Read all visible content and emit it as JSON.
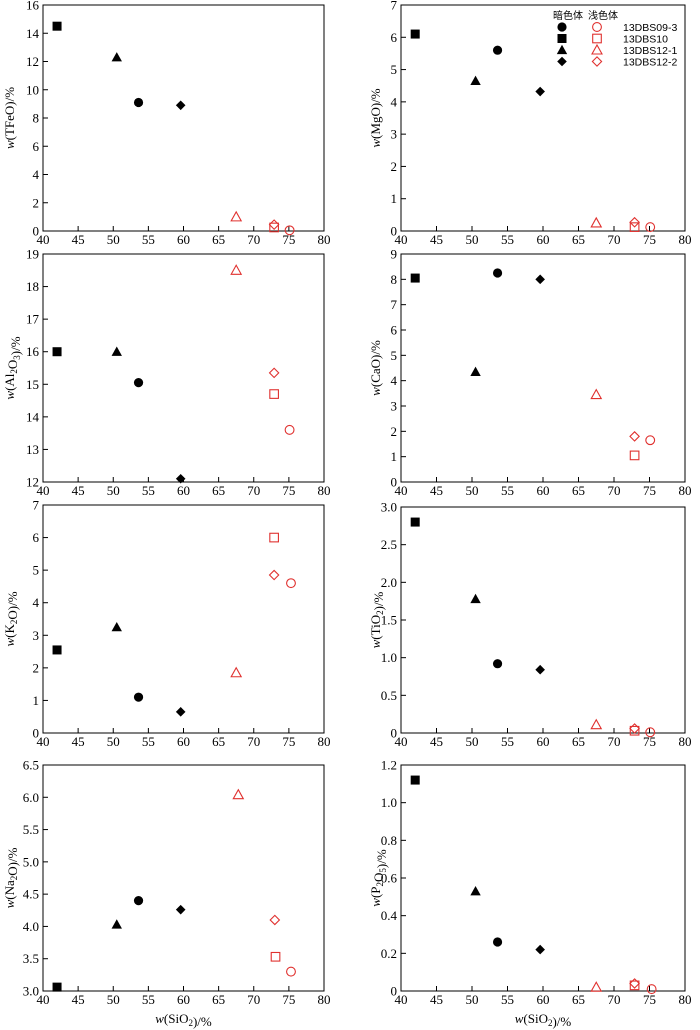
{
  "legend": {
    "header_dark": "暗色体",
    "header_light": "浅色体",
    "entries": [
      {
        "name": "13DBS09-3",
        "symbol": "circle"
      },
      {
        "name": "13DBS10",
        "symbol": "square"
      },
      {
        "name": "13DBS12-1",
        "symbol": "triangle"
      },
      {
        "name": "13DBS12-2",
        "symbol": "diamond"
      }
    ]
  },
  "colors": {
    "dark": "#000000",
    "light": "#e0312f"
  },
  "chart_data": [
    {
      "type": "scatter",
      "panel": "tfeo",
      "ylabel_parts": [
        "w(TFeO)/%"
      ],
      "xlabel_parts": [],
      "xlim": [
        40,
        80
      ],
      "xticks": [
        "40",
        "45",
        "50",
        "55",
        "60",
        "65",
        "70",
        "75",
        "80"
      ],
      "ylim": [
        0,
        16
      ],
      "yticks": [
        "0",
        "2",
        "4",
        "6",
        "8",
        "10",
        "12",
        "14",
        "16"
      ],
      "series": [
        {
          "name": "13DBS09-3 暗色体",
          "symbol": "circle",
          "filled": true,
          "x": 53.6,
          "y": 9.1
        },
        {
          "name": "13DBS10 暗色体",
          "symbol": "square",
          "filled": true,
          "x": 42.0,
          "y": 14.5
        },
        {
          "name": "13DBS12-1 暗色体",
          "symbol": "triangle",
          "filled": true,
          "x": 50.5,
          "y": 12.3
        },
        {
          "name": "13DBS12-2 暗色体",
          "symbol": "diamond",
          "filled": true,
          "x": 59.6,
          "y": 8.9
        },
        {
          "name": "13DBS09-3 浅色体",
          "symbol": "circle",
          "filled": false,
          "x": 75.1,
          "y": 0.05
        },
        {
          "name": "13DBS10 浅色体",
          "symbol": "square",
          "filled": false,
          "x": 72.9,
          "y": 0.25
        },
        {
          "name": "13DBS12-1 浅色体",
          "symbol": "triangle",
          "filled": false,
          "x": 67.5,
          "y": 1.0
        },
        {
          "name": "13DBS12-2 浅色体",
          "symbol": "diamond",
          "filled": false,
          "x": 72.9,
          "y": 0.45
        }
      ]
    },
    {
      "type": "scatter",
      "panel": "mgo",
      "ylabel_parts": [
        "w(MgO)/%"
      ],
      "xlabel_parts": [],
      "xlim": [
        40,
        80
      ],
      "xticks": [
        "40",
        "45",
        "50",
        "55",
        "60",
        "65",
        "70",
        "75",
        "80"
      ],
      "ylim": [
        0,
        7
      ],
      "yticks": [
        "0",
        "1",
        "2",
        "3",
        "4",
        "5",
        "6",
        "7"
      ],
      "series": [
        {
          "name": "13DBS09-3 暗色体",
          "symbol": "circle",
          "filled": true,
          "x": 53.6,
          "y": 5.6
        },
        {
          "name": "13DBS10 暗色体",
          "symbol": "square",
          "filled": true,
          "x": 42.0,
          "y": 6.1
        },
        {
          "name": "13DBS12-1 暗色体",
          "symbol": "triangle",
          "filled": true,
          "x": 50.5,
          "y": 4.65
        },
        {
          "name": "13DBS12-2 暗色体",
          "symbol": "diamond",
          "filled": true,
          "x": 59.6,
          "y": 4.32
        },
        {
          "name": "13DBS09-3 浅色体",
          "symbol": "circle",
          "filled": false,
          "x": 75.1,
          "y": 0.12
        },
        {
          "name": "13DBS10 浅色体",
          "symbol": "square",
          "filled": false,
          "x": 72.9,
          "y": 0.12
        },
        {
          "name": "13DBS12-1 浅色体",
          "symbol": "triangle",
          "filled": false,
          "x": 67.5,
          "y": 0.25
        },
        {
          "name": "13DBS12-2 浅色体",
          "symbol": "diamond",
          "filled": false,
          "x": 72.9,
          "y": 0.27
        }
      ]
    },
    {
      "type": "scatter",
      "panel": "al2o3",
      "ylabel_parts": [
        "w(Al",
        "2",
        "O",
        "3",
        ")/%"
      ],
      "xlabel_parts": [],
      "xlim": [
        40,
        80
      ],
      "xticks": [
        "40",
        "45",
        "50",
        "55",
        "60",
        "65",
        "70",
        "75",
        "80"
      ],
      "ylim": [
        12,
        19
      ],
      "yticks": [
        "12",
        "13",
        "14",
        "15",
        "16",
        "17",
        "18",
        "19"
      ],
      "series": [
        {
          "name": "13DBS09-3 暗色体",
          "symbol": "circle",
          "filled": true,
          "x": 53.6,
          "y": 15.05
        },
        {
          "name": "13DBS10 暗色体",
          "symbol": "square",
          "filled": true,
          "x": 42.0,
          "y": 16.0
        },
        {
          "name": "13DBS12-1 暗色体",
          "symbol": "triangle",
          "filled": true,
          "x": 50.5,
          "y": 16.0
        },
        {
          "name": "13DBS12-2 暗色体",
          "symbol": "diamond",
          "filled": true,
          "x": 59.6,
          "y": 12.1
        },
        {
          "name": "13DBS09-3 浅色体",
          "symbol": "circle",
          "filled": false,
          "x": 75.1,
          "y": 13.6
        },
        {
          "name": "13DBS10 浅色体",
          "symbol": "square",
          "filled": false,
          "x": 72.9,
          "y": 14.7
        },
        {
          "name": "13DBS12-1 浅色体",
          "symbol": "triangle",
          "filled": false,
          "x": 67.5,
          "y": 18.5
        },
        {
          "name": "13DBS12-2 浅色体",
          "symbol": "diamond",
          "filled": false,
          "x": 72.9,
          "y": 15.35
        }
      ]
    },
    {
      "type": "scatter",
      "panel": "cao",
      "ylabel_parts": [
        "w(CaO)/%"
      ],
      "xlabel_parts": [],
      "xlim": [
        40,
        80
      ],
      "xticks": [
        "40",
        "45",
        "50",
        "55",
        "60",
        "65",
        "70",
        "75",
        "80"
      ],
      "ylim": [
        0,
        9
      ],
      "yticks": [
        "0",
        "1",
        "2",
        "3",
        "4",
        "5",
        "6",
        "7",
        "8",
        "9"
      ],
      "series": [
        {
          "name": "13DBS09-3 暗色体",
          "symbol": "circle",
          "filled": true,
          "x": 53.6,
          "y": 8.25
        },
        {
          "name": "13DBS10 暗色体",
          "symbol": "square",
          "filled": true,
          "x": 42.0,
          "y": 8.05
        },
        {
          "name": "13DBS12-1 暗色体",
          "symbol": "triangle",
          "filled": true,
          "x": 50.5,
          "y": 4.35
        },
        {
          "name": "13DBS12-2 暗色体",
          "symbol": "diamond",
          "filled": true,
          "x": 59.6,
          "y": 8.0
        },
        {
          "name": "13DBS09-3 浅色体",
          "symbol": "circle",
          "filled": false,
          "x": 75.1,
          "y": 1.65
        },
        {
          "name": "13DBS10 浅色体",
          "symbol": "square",
          "filled": false,
          "x": 72.9,
          "y": 1.05
        },
        {
          "name": "13DBS12-1 浅色体",
          "symbol": "triangle",
          "filled": false,
          "x": 67.5,
          "y": 3.45
        },
        {
          "name": "13DBS12-2 浅色体",
          "symbol": "diamond",
          "filled": false,
          "x": 72.9,
          "y": 1.8
        }
      ]
    },
    {
      "type": "scatter",
      "panel": "k2o",
      "ylabel_parts": [
        "w(K",
        "2",
        "O)/%"
      ],
      "xlabel_parts": [],
      "xlim": [
        40,
        80
      ],
      "xticks": [
        "40",
        "45",
        "50",
        "55",
        "60",
        "65",
        "70",
        "75",
        "80"
      ],
      "ylim": [
        0,
        7
      ],
      "yticks": [
        "0",
        "1",
        "2",
        "3",
        "4",
        "5",
        "6",
        "7"
      ],
      "series": [
        {
          "name": "13DBS09-3 暗色体",
          "symbol": "circle",
          "filled": true,
          "x": 53.6,
          "y": 1.1
        },
        {
          "name": "13DBS10 暗色体",
          "symbol": "square",
          "filled": true,
          "x": 42.0,
          "y": 2.55
        },
        {
          "name": "13DBS12-1 暗色体",
          "symbol": "triangle",
          "filled": true,
          "x": 50.5,
          "y": 3.25
        },
        {
          "name": "13DBS12-2 暗色体",
          "symbol": "diamond",
          "filled": true,
          "x": 59.6,
          "y": 0.65
        },
        {
          "name": "13DBS09-3 浅色体",
          "symbol": "circle",
          "filled": false,
          "x": 75.3,
          "y": 4.6
        },
        {
          "name": "13DBS10 浅色体",
          "symbol": "square",
          "filled": false,
          "x": 72.9,
          "y": 6.0
        },
        {
          "name": "13DBS12-1 浅色体",
          "symbol": "triangle",
          "filled": false,
          "x": 67.5,
          "y": 1.85
        },
        {
          "name": "13DBS12-2 浅色体",
          "symbol": "diamond",
          "filled": false,
          "x": 72.9,
          "y": 4.85
        }
      ]
    },
    {
      "type": "scatter",
      "panel": "tio2",
      "ylabel_parts": [
        "w(TiO",
        "2",
        ")/%"
      ],
      "xlabel_parts": [],
      "xlim": [
        40,
        80
      ],
      "xticks": [
        "40",
        "45",
        "50",
        "55",
        "60",
        "65",
        "70",
        "75",
        "80"
      ],
      "ylim": [
        0,
        3.0
      ],
      "yticks": [
        "0",
        "0.5",
        "1.0",
        "1.5",
        "2.0",
        "2.5",
        "3.0"
      ],
      "series": [
        {
          "name": "13DBS09-3 暗色体",
          "symbol": "circle",
          "filled": true,
          "x": 53.6,
          "y": 0.92
        },
        {
          "name": "13DBS10 暗色体",
          "symbol": "square",
          "filled": true,
          "x": 42.0,
          "y": 2.8
        },
        {
          "name": "13DBS12-1 暗色体",
          "symbol": "triangle",
          "filled": true,
          "x": 50.5,
          "y": 1.78
        },
        {
          "name": "13DBS12-2 暗色体",
          "symbol": "diamond",
          "filled": true,
          "x": 59.6,
          "y": 0.84
        },
        {
          "name": "13DBS09-3 浅色体",
          "symbol": "circle",
          "filled": false,
          "x": 75.1,
          "y": 0.01
        },
        {
          "name": "13DBS10 浅色体",
          "symbol": "square",
          "filled": false,
          "x": 72.9,
          "y": 0.03
        },
        {
          "name": "13DBS12-1 浅色体",
          "symbol": "triangle",
          "filled": false,
          "x": 67.5,
          "y": 0.11
        },
        {
          "name": "13DBS12-2 浅色体",
          "symbol": "diamond",
          "filled": false,
          "x": 72.9,
          "y": 0.06
        }
      ]
    },
    {
      "type": "scatter",
      "panel": "na2o",
      "ylabel_parts": [
        "w(Na",
        "2",
        "O)/%"
      ],
      "xlabel_parts": [
        "w(SiO",
        "2",
        ")/%"
      ],
      "xlim": [
        40,
        80
      ],
      "xticks": [
        "40",
        "45",
        "50",
        "55",
        "60",
        "65",
        "70",
        "75",
        "80"
      ],
      "ylim": [
        3.0,
        6.5
      ],
      "yticks": [
        "3.0",
        "3.5",
        "4.0",
        "4.5",
        "5.0",
        "5.5",
        "6.0",
        "6.5"
      ],
      "series": [
        {
          "name": "13DBS09-3 暗色体",
          "symbol": "circle",
          "filled": true,
          "x": 53.6,
          "y": 4.4
        },
        {
          "name": "13DBS10 暗色体",
          "symbol": "square",
          "filled": true,
          "x": 42.0,
          "y": 3.06
        },
        {
          "name": "13DBS12-1 暗色体",
          "symbol": "triangle",
          "filled": true,
          "x": 50.5,
          "y": 4.03
        },
        {
          "name": "13DBS12-2 暗色体",
          "symbol": "diamond",
          "filled": true,
          "x": 59.6,
          "y": 4.26
        },
        {
          "name": "13DBS09-3 浅色体",
          "symbol": "circle",
          "filled": false,
          "x": 75.3,
          "y": 3.3
        },
        {
          "name": "13DBS10 浅色体",
          "symbol": "square",
          "filled": false,
          "x": 73.1,
          "y": 3.53
        },
        {
          "name": "13DBS12-1 浅色体",
          "symbol": "triangle",
          "filled": false,
          "x": 67.8,
          "y": 6.04
        },
        {
          "name": "13DBS12-2 浅色体",
          "symbol": "diamond",
          "filled": false,
          "x": 73.0,
          "y": 4.1
        }
      ]
    },
    {
      "type": "scatter",
      "panel": "p2o5",
      "ylabel_parts": [
        "w(P",
        "2",
        "O",
        "5",
        ")/%"
      ],
      "xlabel_parts": [
        "w(SiO",
        "2",
        ")/%"
      ],
      "xlim": [
        40,
        80
      ],
      "xticks": [
        "40",
        "45",
        "50",
        "55",
        "60",
        "65",
        "70",
        "75",
        "80"
      ],
      "ylim": [
        0,
        1.2
      ],
      "yticks": [
        "0",
        "0.2",
        "0.4",
        "0.6",
        "0.8",
        "1.0",
        "1.2"
      ],
      "series": [
        {
          "name": "13DBS09-3 暗色体",
          "symbol": "circle",
          "filled": true,
          "x": 53.6,
          "y": 0.26
        },
        {
          "name": "13DBS10 暗色体",
          "symbol": "square",
          "filled": true,
          "x": 42.0,
          "y": 1.12
        },
        {
          "name": "13DBS12-1 暗色体",
          "symbol": "triangle",
          "filled": true,
          "x": 50.5,
          "y": 0.53
        },
        {
          "name": "13DBS12-2 暗色体",
          "symbol": "diamond",
          "filled": true,
          "x": 59.6,
          "y": 0.22
        },
        {
          "name": "13DBS09-3 浅色体",
          "symbol": "circle",
          "filled": false,
          "x": 75.3,
          "y": 0.01
        },
        {
          "name": "13DBS10 浅色体",
          "symbol": "square",
          "filled": false,
          "x": 72.9,
          "y": 0.03
        },
        {
          "name": "13DBS12-1 浅色体",
          "symbol": "triangle",
          "filled": false,
          "x": 67.5,
          "y": 0.02
        },
        {
          "name": "13DBS12-2 浅色体",
          "symbol": "diamond",
          "filled": false,
          "x": 72.9,
          "y": 0.04
        }
      ]
    }
  ]
}
